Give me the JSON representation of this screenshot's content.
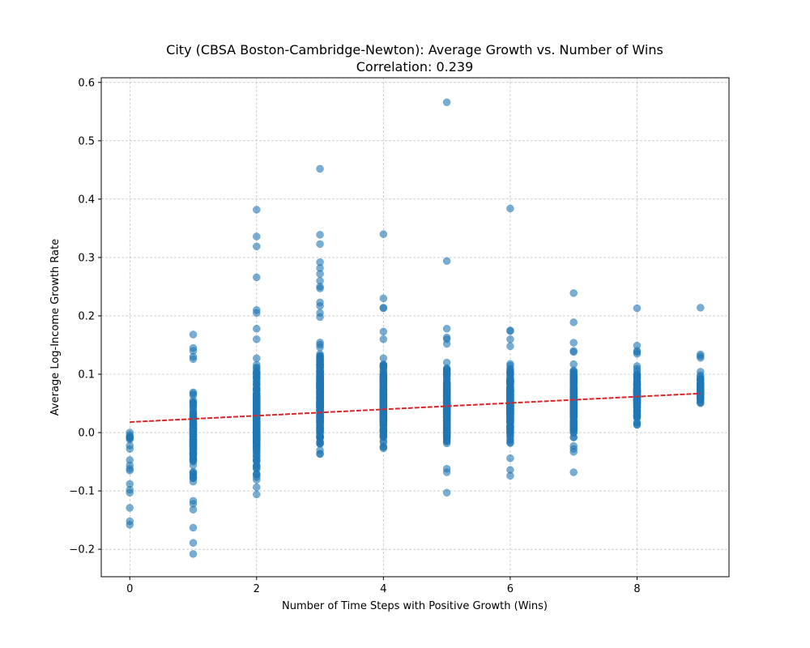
{
  "chart_data": {
    "type": "scatter",
    "title": "City (CBSA Boston-Cambridge-Newton): Average Growth vs. Number of Wins",
    "subtitle": "Correlation: 0.239",
    "xlabel": "Number of Time Steps with Positive Growth (Wins)",
    "ylabel": "Average Log-Income Growth Rate",
    "xlim": [
      -0.45,
      9.45
    ],
    "ylim": [
      -0.247,
      0.608
    ],
    "xticks": [
      0,
      2,
      4,
      6,
      8
    ],
    "yticks": [
      -0.2,
      -0.1,
      0.0,
      0.1,
      0.2,
      0.3,
      0.4,
      0.5,
      0.6
    ],
    "xtick_labels": [
      "0",
      "2",
      "4",
      "6",
      "8"
    ],
    "ytick_labels": [
      "−0.2",
      "−0.1",
      "0.0",
      "0.1",
      "0.2",
      "0.3",
      "0.4",
      "0.5",
      "0.6"
    ],
    "grid": true,
    "point_color": "#1f77b4",
    "trend_color": "#d62728",
    "trendline": {
      "x": [
        0,
        9
      ],
      "y": [
        0.018,
        0.067
      ]
    },
    "distributions": [
      {
        "x": 0,
        "min": -0.02,
        "max": 0.0,
        "n": 6,
        "outliers": [
          0.0,
          -0.022,
          -0.028,
          -0.047,
          -0.056,
          -0.062,
          -0.065,
          -0.088,
          -0.098,
          -0.103,
          -0.129,
          -0.152,
          -0.158
        ]
      },
      {
        "x": 1,
        "min": -0.11,
        "max": 0.095,
        "n": 120,
        "outliers": [
          0.168,
          0.145,
          0.14,
          0.13,
          0.126,
          -0.117,
          -0.122,
          -0.132,
          -0.163,
          -0.189,
          -0.208
        ]
      },
      {
        "x": 2,
        "min": -0.1,
        "max": 0.14,
        "n": 200,
        "outliers": [
          0.382,
          0.336,
          0.319,
          0.266,
          0.21,
          0.205,
          0.178,
          0.16,
          -0.106
        ]
      },
      {
        "x": 3,
        "min": -0.052,
        "max": 0.175,
        "n": 300,
        "outliers": [
          0.452,
          0.339,
          0.323,
          0.292,
          0.282,
          0.272,
          0.26,
          0.25,
          0.247,
          0.223,
          0.217,
          0.205,
          0.198
        ]
      },
      {
        "x": 4,
        "min": -0.042,
        "max": 0.14,
        "n": 250,
        "outliers": [
          0.34,
          0.23,
          0.214,
          0.213,
          0.173,
          0.16
        ]
      },
      {
        "x": 5,
        "min": -0.05,
        "max": 0.135,
        "n": 230,
        "outliers": [
          0.566,
          0.294,
          0.178,
          0.163,
          0.16,
          0.152,
          -0.062,
          -0.068,
          -0.103
        ]
      },
      {
        "x": 6,
        "min": -0.03,
        "max": 0.13,
        "n": 220,
        "outliers": [
          0.384,
          0.175,
          0.174,
          0.16,
          0.148,
          -0.044,
          -0.064,
          -0.074
        ]
      },
      {
        "x": 7,
        "min": -0.02,
        "max": 0.13,
        "n": 190,
        "outliers": [
          0.239,
          0.189,
          0.154,
          0.14,
          0.138,
          -0.023,
          -0.028,
          -0.033,
          -0.068
        ]
      },
      {
        "x": 8,
        "min": -0.006,
        "max": 0.125,
        "n": 120,
        "outliers": [
          0.213,
          0.149,
          0.14,
          0.138,
          0.135
        ]
      },
      {
        "x": 9,
        "min": 0.035,
        "max": 0.115,
        "n": 60,
        "outliers": [
          0.214,
          0.134,
          0.131,
          0.128
        ]
      }
    ]
  }
}
